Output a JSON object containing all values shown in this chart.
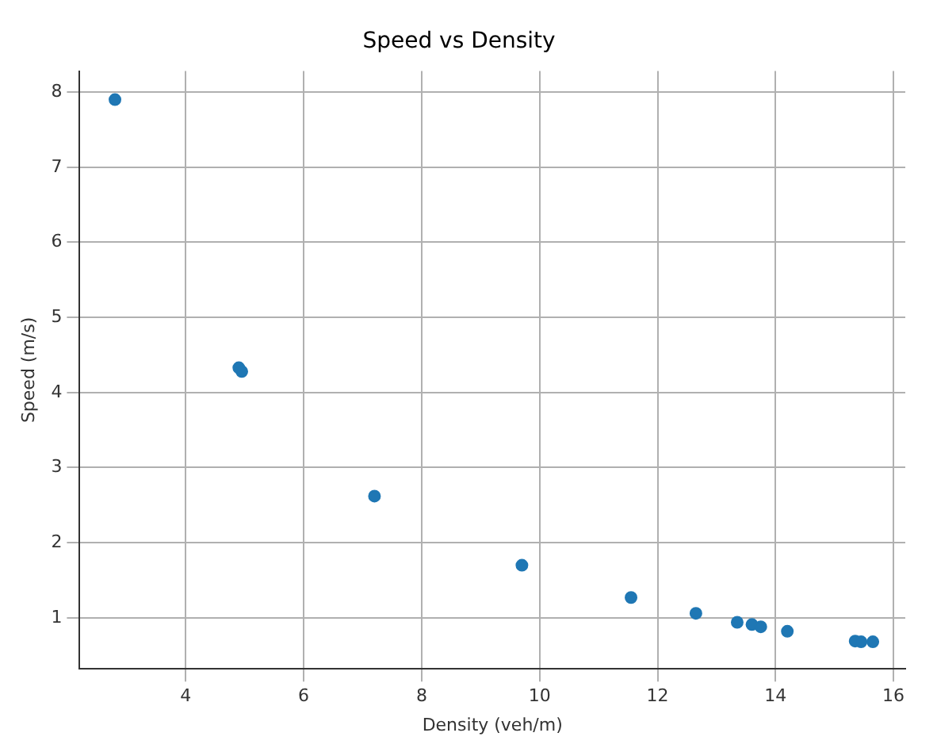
{
  "chart_data": {
    "type": "scatter",
    "title": "Speed vs Density",
    "xlabel": "Density (veh/m)",
    "ylabel": "Speed (m/s)",
    "x": [
      2.8,
      4.9,
      4.95,
      7.2,
      9.7,
      11.55,
      12.65,
      13.35,
      13.6,
      13.75,
      14.2,
      15.35,
      15.45,
      15.65
    ],
    "series": [
      {
        "color": "#1f77b4",
        "values": [
          7.9,
          4.33,
          4.28,
          2.62,
          1.7,
          1.27,
          1.06,
          0.94,
          0.91,
          0.88,
          0.82,
          0.69,
          0.68,
          0.68
        ]
      }
    ],
    "xlim": [
      2.2,
      16.2
    ],
    "ylim": [
      0.32,
      8.28
    ],
    "xticks": [
      4,
      6,
      8,
      10,
      12,
      14,
      16
    ],
    "yticks": [
      1,
      2,
      3,
      4,
      5,
      6,
      7,
      8
    ],
    "grid": true,
    "legend": false,
    "marker": "circle"
  }
}
